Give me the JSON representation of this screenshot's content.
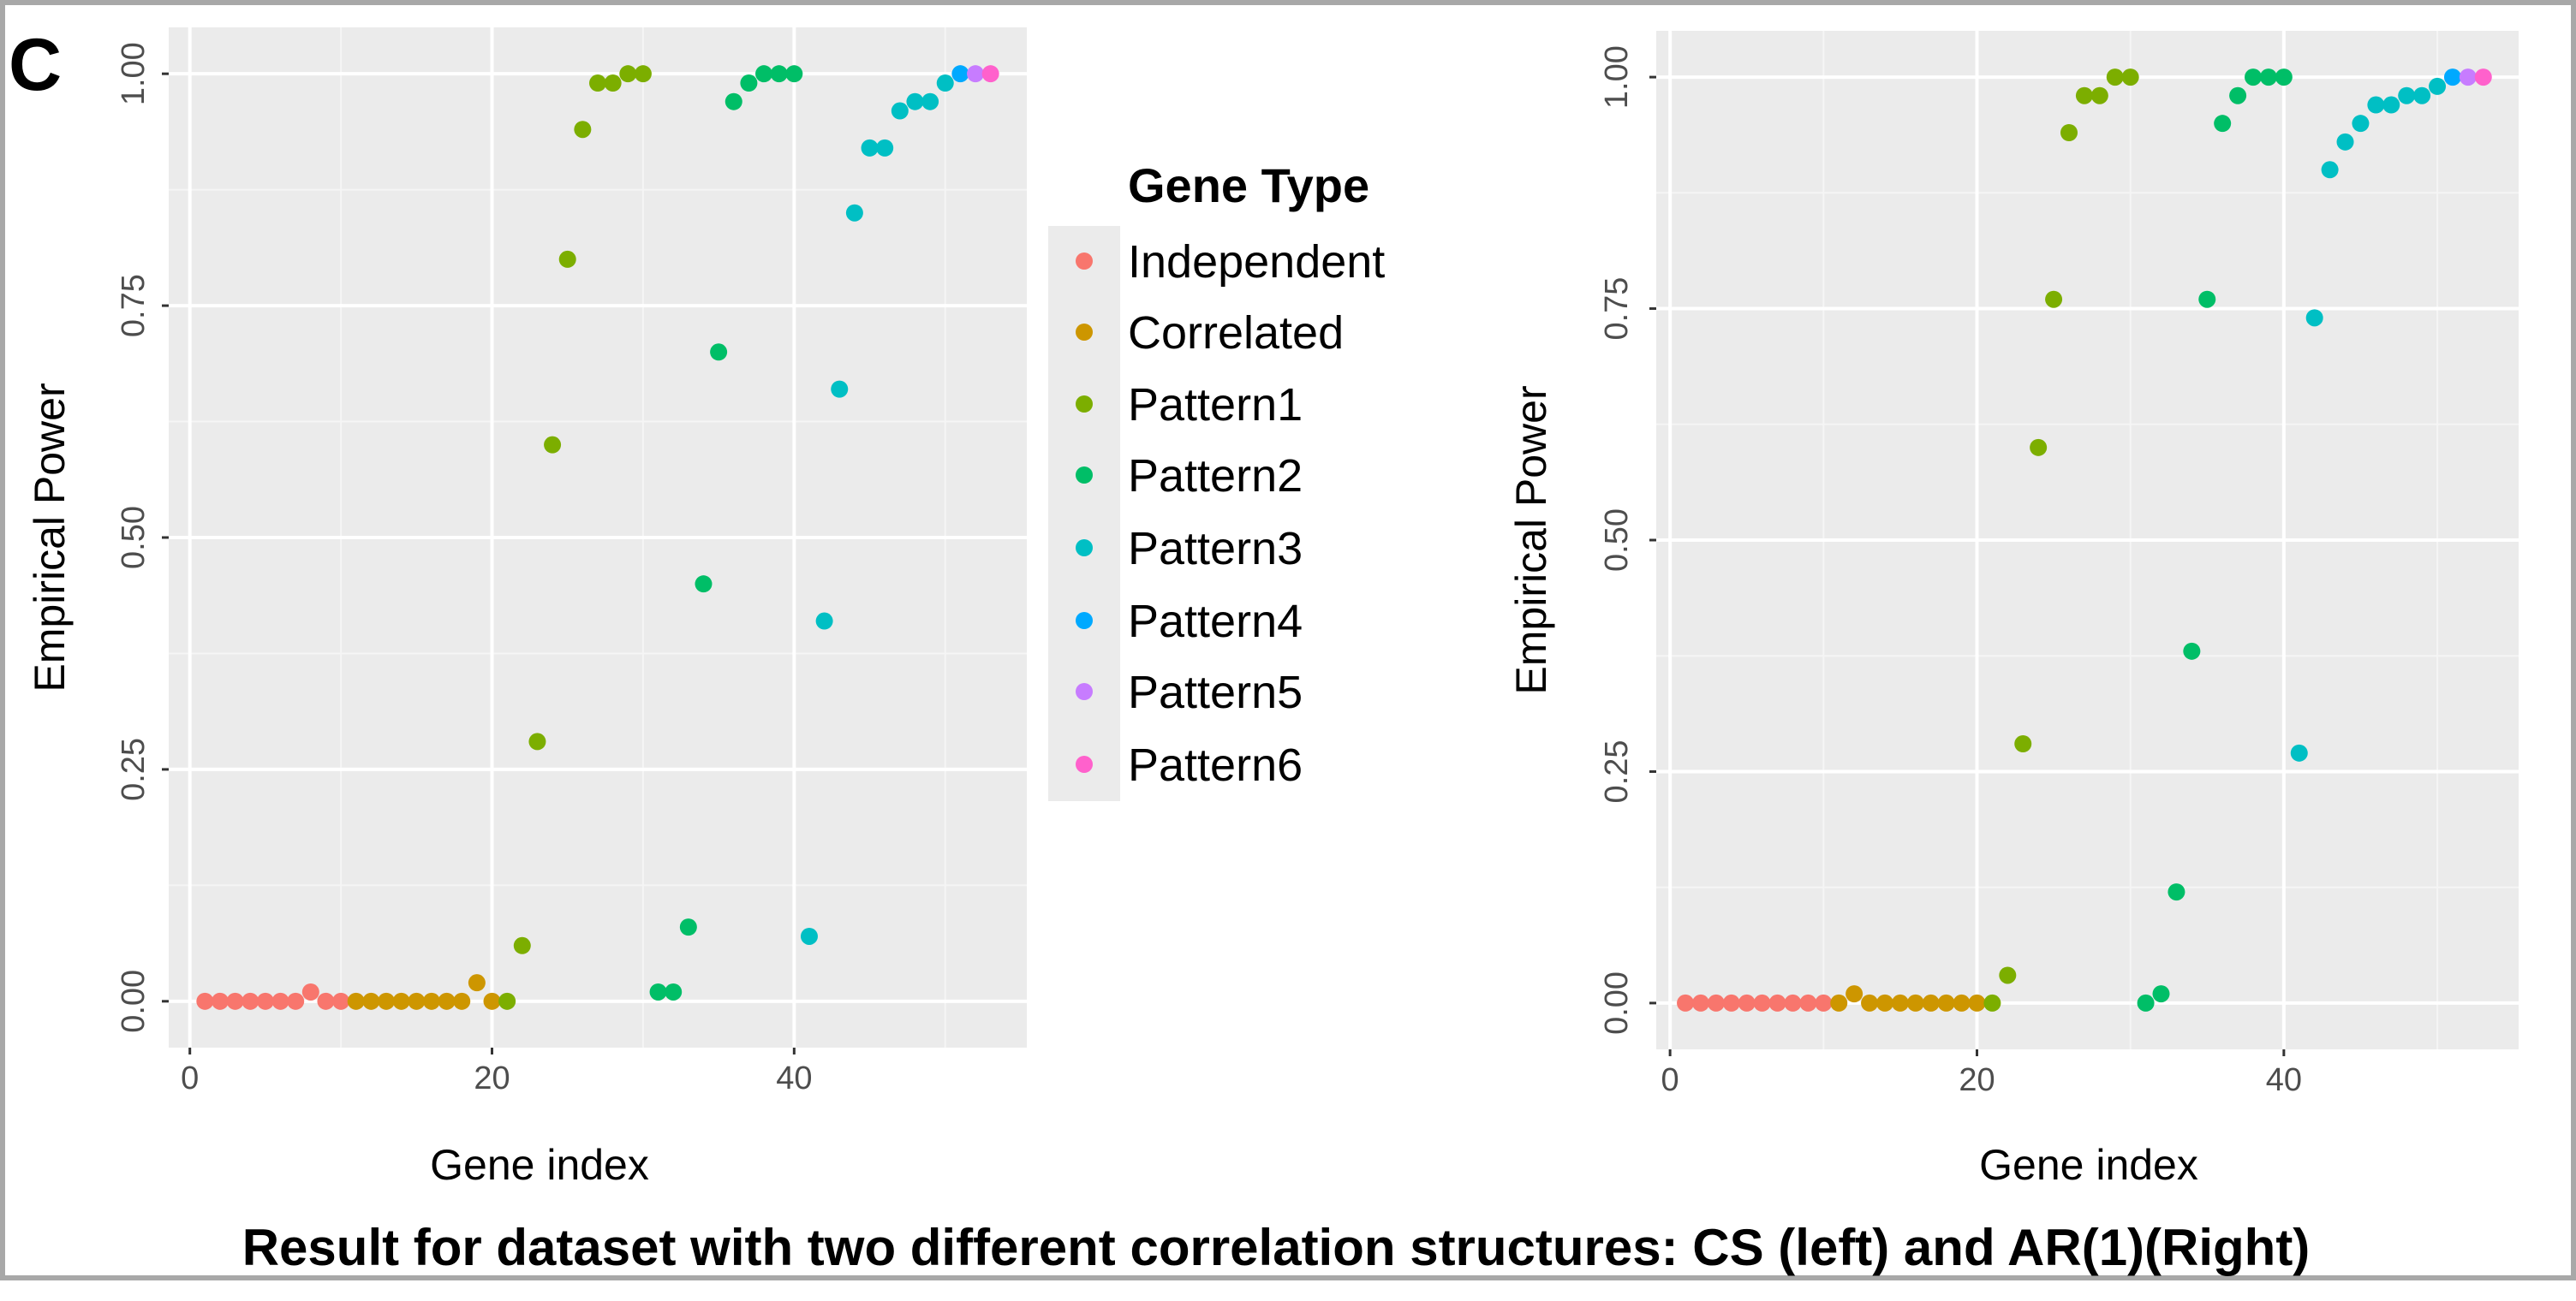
{
  "panel_letter": "C",
  "caption": "Result for dataset with two different correlation structures: CS (left) and AR(1)(Right)",
  "legend": {
    "title": "Gene Type",
    "items": [
      {
        "label": "Independent",
        "color": "#F8766D"
      },
      {
        "label": "Correlated",
        "color": "#CD9600"
      },
      {
        "label": "Pattern1",
        "color": "#7CAE00"
      },
      {
        "label": "Pattern2",
        "color": "#00BE67"
      },
      {
        "label": "Pattern3",
        "color": "#00BFC4"
      },
      {
        "label": "Pattern4",
        "color": "#00A9FF"
      },
      {
        "label": "Pattern5",
        "color": "#C77CFF"
      },
      {
        "label": "Pattern6",
        "color": "#FF61CC"
      }
    ]
  },
  "chart_data": [
    {
      "type": "scatter",
      "title": "CS",
      "xlabel": "Gene index",
      "ylabel": "Empirical Power",
      "xlim": [
        -1.4,
        55.4
      ],
      "ylim": [
        -0.05,
        1.05
      ],
      "xticks": [
        "0",
        "20",
        "40"
      ],
      "xtick_values": [
        0,
        20,
        40
      ],
      "yticks": [
        "0.00",
        "0.25",
        "0.50",
        "0.75",
        "1.00"
      ],
      "ytick_values": [
        0,
        0.25,
        0.5,
        0.75,
        1.0
      ],
      "grid": true,
      "series": [
        {
          "name": "Independent",
          "x": [
            1,
            2,
            3,
            4,
            5,
            6,
            7,
            8,
            9,
            10
          ],
          "y": [
            0,
            0,
            0,
            0,
            0,
            0,
            0,
            0.01,
            0,
            0
          ]
        },
        {
          "name": "Correlated",
          "x": [
            11,
            12,
            13,
            14,
            15,
            16,
            17,
            18,
            19,
            20
          ],
          "y": [
            0,
            0,
            0,
            0,
            0,
            0,
            0,
            0,
            0.02,
            0
          ]
        },
        {
          "name": "Pattern1",
          "x": [
            21,
            22,
            23,
            24,
            25,
            26,
            27,
            28,
            29,
            30
          ],
          "y": [
            0,
            0.06,
            0.28,
            0.6,
            0.8,
            0.94,
            0.99,
            0.99,
            1.0,
            1.0
          ]
        },
        {
          "name": "Pattern2",
          "x": [
            31,
            32,
            33,
            34,
            35,
            36,
            37,
            38,
            39,
            40
          ],
          "y": [
            0.01,
            0.01,
            0.08,
            0.45,
            0.7,
            0.97,
            0.99,
            1.0,
            1.0,
            1.0
          ]
        },
        {
          "name": "Pattern3",
          "x": [
            41,
            42,
            43,
            44,
            45,
            46,
            47,
            48,
            49,
            50
          ],
          "y": [
            0.07,
            0.41,
            0.66,
            0.85,
            0.92,
            0.92,
            0.96,
            0.97,
            0.97,
            0.99
          ]
        },
        {
          "name": "Pattern4",
          "x": [
            51
          ],
          "y": [
            1.0
          ]
        },
        {
          "name": "Pattern5",
          "x": [
            52
          ],
          "y": [
            1.0
          ]
        },
        {
          "name": "Pattern6",
          "x": [
            53
          ],
          "y": [
            1.0
          ]
        }
      ]
    },
    {
      "type": "scatter",
      "title": "AR(1)",
      "xlabel": "Gene index",
      "ylabel": "Empirical Power",
      "xlim": [
        -0.9,
        55.3
      ],
      "ylim": [
        -0.05,
        1.05
      ],
      "xticks": [
        "0",
        "20",
        "40"
      ],
      "xtick_values": [
        0,
        20,
        40
      ],
      "yticks": [
        "0.00",
        "0.25",
        "0.50",
        "0.75",
        "1.00"
      ],
      "ytick_values": [
        0,
        0.25,
        0.5,
        0.75,
        1.0
      ],
      "grid": true,
      "series": [
        {
          "name": "Independent",
          "x": [
            1,
            2,
            3,
            4,
            5,
            6,
            7,
            8,
            9,
            10
          ],
          "y": [
            0,
            0,
            0,
            0,
            0,
            0,
            0,
            0,
            0,
            0
          ]
        },
        {
          "name": "Correlated",
          "x": [
            11,
            12,
            13,
            14,
            15,
            16,
            17,
            18,
            19,
            20
          ],
          "y": [
            0,
            0.01,
            0,
            0,
            0,
            0,
            0,
            0,
            0,
            0
          ]
        },
        {
          "name": "Pattern1",
          "x": [
            21,
            22,
            23,
            24,
            25,
            26,
            27,
            28,
            29,
            30
          ],
          "y": [
            0,
            0.03,
            0.28,
            0.6,
            0.76,
            0.94,
            0.98,
            0.98,
            1.0,
            1.0
          ]
        },
        {
          "name": "Pattern2",
          "x": [
            31,
            32,
            33,
            34,
            35,
            36,
            37,
            38,
            39,
            40
          ],
          "y": [
            0,
            0.01,
            0.12,
            0.38,
            0.76,
            0.95,
            0.98,
            1.0,
            1.0,
            1.0
          ]
        },
        {
          "name": "Pattern3",
          "x": [
            41,
            42,
            43,
            44,
            45,
            46,
            47,
            48,
            49,
            50
          ],
          "y": [
            0.27,
            0.74,
            0.9,
            0.93,
            0.95,
            0.97,
            0.97,
            0.98,
            0.98,
            0.99
          ]
        },
        {
          "name": "Pattern4",
          "x": [
            51
          ],
          "y": [
            1.0
          ]
        },
        {
          "name": "Pattern5",
          "x": [
            52
          ],
          "y": [
            1.0
          ]
        },
        {
          "name": "Pattern6",
          "x": [
            53
          ],
          "y": [
            1.0
          ]
        }
      ]
    }
  ]
}
